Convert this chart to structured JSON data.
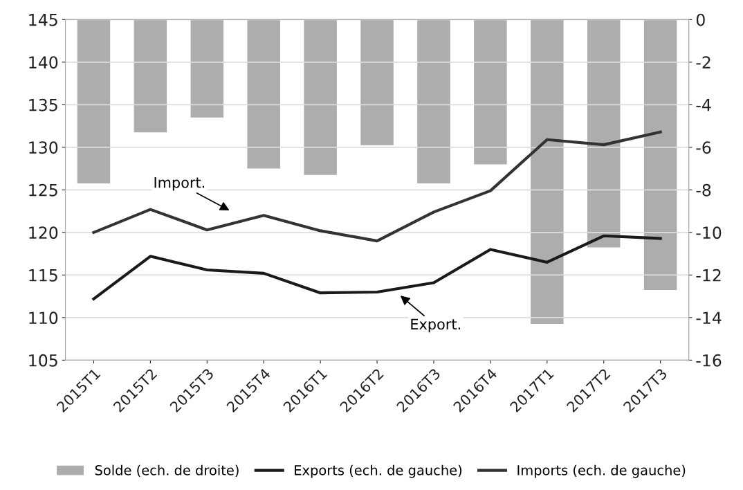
{
  "chart_data": {
    "type": "line",
    "categories": [
      "2015T1",
      "2015T2",
      "2015T3",
      "2015T4",
      "2016T1",
      "2016T2",
      "2016T3",
      "2016T4",
      "2017T1",
      "2017T2",
      "2017T3"
    ],
    "series": [
      {
        "name": "Solde (ech. de droite)",
        "type": "bar",
        "axis": "y2",
        "color": "#adadad",
        "values": [
          -7.7,
          -5.3,
          -4.6,
          -7.0,
          -7.3,
          -5.9,
          -7.7,
          -6.8,
          -14.3,
          -10.7,
          -12.7
        ]
      },
      {
        "name": "Exports (ech. de gauche)",
        "color": "#1a1a1a",
        "values": [
          112.2,
          117.2,
          115.6,
          115.2,
          112.9,
          113.0,
          114.1,
          118.0,
          116.5,
          119.6,
          119.3
        ]
      },
      {
        "name": "Imports (ech. de gauche)",
        "color": "#333333",
        "values": [
          120.0,
          122.7,
          120.3,
          122.0,
          120.2,
          119.0,
          122.4,
          124.9,
          130.9,
          130.3,
          131.8
        ]
      }
    ],
    "ylim": [
      105,
      145
    ],
    "yticks": [
      105,
      110,
      115,
      120,
      125,
      130,
      135,
      140,
      145
    ],
    "y2lim": [
      -16,
      0
    ],
    "y2ticks": [
      -16,
      -14,
      -12,
      -10,
      -8,
      -6,
      -4,
      -2,
      0
    ],
    "annotations": [
      "Import.",
      "Export."
    ],
    "grid": "y",
    "legend": "bottom",
    "line_style": "solid",
    "marker": "none"
  }
}
